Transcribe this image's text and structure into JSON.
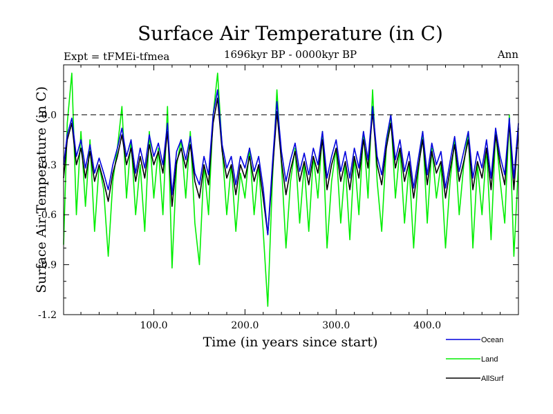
{
  "chart_data": {
    "type": "line",
    "title": "Surface Air Temperature (in C)",
    "subtitle_left": "Expt = tFMEi-tfmea",
    "subtitle_center": "1696kyr BP - 0000kyr BP",
    "subtitle_right": "Ann",
    "xlabel": "Time (in years since start)",
    "ylabel": "Surface Air Temperature (in C)",
    "xlim": [
      1,
      500
    ],
    "ylim": [
      -1.2,
      0.3
    ],
    "x_ticks": [
      100,
      200,
      300,
      400
    ],
    "x_tick_labels": [
      "100.0",
      "200.0",
      "300.0",
      "400.0"
    ],
    "y_ticks": [
      0.0,
      -0.3,
      -0.6,
      -0.9,
      -1.2
    ],
    "y_tick_labels": [
      "0.0",
      "-0.3",
      "-0.6",
      "-0.9",
      "-1.2"
    ],
    "reference_line": 0.0,
    "legend_position": "bottom-right",
    "series": [
      {
        "name": "Land",
        "color": "#00ee00",
        "x": [
          1,
          5,
          10,
          15,
          20,
          25,
          30,
          35,
          40,
          45,
          50,
          55,
          60,
          65,
          70,
          75,
          80,
          85,
          90,
          95,
          100,
          105,
          110,
          115,
          120,
          125,
          130,
          135,
          140,
          145,
          150,
          155,
          160,
          165,
          170,
          175,
          180,
          185,
          190,
          195,
          200,
          205,
          210,
          215,
          220,
          225,
          230,
          235,
          240,
          245,
          250,
          255,
          260,
          265,
          270,
          275,
          280,
          285,
          290,
          295,
          300,
          305,
          310,
          315,
          320,
          325,
          330,
          335,
          340,
          345,
          350,
          355,
          360,
          365,
          370,
          375,
          380,
          385,
          390,
          395,
          400,
          405,
          410,
          415,
          420,
          425,
          430,
          435,
          440,
          445,
          450,
          455,
          460,
          465,
          470,
          475,
          480,
          485,
          490,
          495,
          500
        ],
        "values": [
          -0.78,
          -0.05,
          0.25,
          -0.6,
          -0.1,
          -0.55,
          -0.15,
          -0.7,
          -0.3,
          -0.45,
          -0.85,
          -0.4,
          -0.2,
          0.05,
          -0.5,
          -0.15,
          -0.6,
          -0.3,
          -0.7,
          -0.1,
          -0.5,
          -0.2,
          -0.6,
          0.05,
          -0.92,
          -0.3,
          -0.15,
          -0.5,
          -0.1,
          -0.65,
          -0.9,
          -0.3,
          -0.6,
          0.0,
          0.25,
          -0.2,
          -0.6,
          -0.3,
          -0.7,
          -0.35,
          -0.5,
          -0.2,
          -0.6,
          -0.3,
          -0.7,
          -1.15,
          -0.4,
          0.15,
          -0.3,
          -0.8,
          -0.4,
          -0.2,
          -0.65,
          -0.3,
          -0.7,
          -0.25,
          -0.5,
          -0.1,
          -0.8,
          -0.4,
          -0.2,
          -0.65,
          -0.3,
          -0.75,
          -0.25,
          -0.6,
          -0.1,
          -0.5,
          0.15,
          -0.4,
          -0.7,
          -0.2,
          0.0,
          -0.5,
          -0.2,
          -0.65,
          -0.3,
          -0.8,
          -0.35,
          -0.1,
          -0.65,
          -0.2,
          -0.5,
          -0.3,
          -0.8,
          -0.4,
          -0.15,
          -0.6,
          -0.3,
          -0.1,
          -0.8,
          -0.3,
          -0.6,
          -0.2,
          -0.75,
          -0.1,
          -0.4,
          -0.65,
          0.0,
          -0.85,
          -0.3
        ]
      },
      {
        "name": "AllSurf",
        "color": "#000000",
        "x": [
          1,
          5,
          10,
          15,
          20,
          25,
          30,
          35,
          40,
          45,
          50,
          55,
          60,
          65,
          70,
          75,
          80,
          85,
          90,
          95,
          100,
          105,
          110,
          115,
          120,
          125,
          130,
          135,
          140,
          145,
          150,
          155,
          160,
          165,
          170,
          175,
          180,
          185,
          190,
          195,
          200,
          205,
          210,
          215,
          220,
          225,
          230,
          235,
          240,
          245,
          250,
          255,
          260,
          265,
          270,
          275,
          280,
          285,
          290,
          295,
          300,
          305,
          310,
          315,
          320,
          325,
          330,
          335,
          340,
          345,
          350,
          355,
          360,
          365,
          370,
          375,
          380,
          385,
          390,
          395,
          400,
          405,
          410,
          415,
          420,
          425,
          430,
          435,
          440,
          445,
          450,
          455,
          460,
          465,
          470,
          475,
          480,
          485,
          490,
          495,
          500
        ],
        "values": [
          -0.38,
          -0.15,
          -0.05,
          -0.3,
          -0.2,
          -0.38,
          -0.22,
          -0.4,
          -0.3,
          -0.4,
          -0.52,
          -0.35,
          -0.25,
          -0.12,
          -0.3,
          -0.2,
          -0.4,
          -0.25,
          -0.38,
          -0.18,
          -0.3,
          -0.22,
          -0.35,
          -0.1,
          -0.55,
          -0.28,
          -0.2,
          -0.32,
          -0.18,
          -0.4,
          -0.5,
          -0.3,
          -0.42,
          -0.05,
          0.1,
          -0.22,
          -0.38,
          -0.3,
          -0.48,
          -0.3,
          -0.38,
          -0.25,
          -0.4,
          -0.3,
          -0.5,
          -0.72,
          -0.35,
          0.02,
          -0.28,
          -0.48,
          -0.33,
          -0.22,
          -0.4,
          -0.28,
          -0.42,
          -0.25,
          -0.35,
          -0.15,
          -0.45,
          -0.3,
          -0.2,
          -0.4,
          -0.28,
          -0.45,
          -0.25,
          -0.38,
          -0.15,
          -0.32,
          0.02,
          -0.3,
          -0.42,
          -0.2,
          -0.05,
          -0.32,
          -0.2,
          -0.4,
          -0.28,
          -0.5,
          -0.32,
          -0.15,
          -0.42,
          -0.22,
          -0.35,
          -0.28,
          -0.5,
          -0.33,
          -0.18,
          -0.4,
          -0.28,
          -0.15,
          -0.45,
          -0.28,
          -0.38,
          -0.2,
          -0.45,
          -0.12,
          -0.3,
          -0.42,
          -0.05,
          -0.45,
          -0.08
        ]
      },
      {
        "name": "Ocean",
        "color": "#0000dd",
        "x": [
          1,
          5,
          10,
          15,
          20,
          25,
          30,
          35,
          40,
          45,
          50,
          55,
          60,
          65,
          70,
          75,
          80,
          85,
          90,
          95,
          100,
          105,
          110,
          115,
          120,
          125,
          130,
          135,
          140,
          145,
          150,
          155,
          160,
          165,
          170,
          175,
          180,
          185,
          190,
          195,
          200,
          205,
          210,
          215,
          220,
          225,
          230,
          235,
          240,
          245,
          250,
          255,
          260,
          265,
          270,
          275,
          280,
          285,
          290,
          295,
          300,
          305,
          310,
          315,
          320,
          325,
          330,
          335,
          340,
          345,
          350,
          355,
          360,
          365,
          370,
          375,
          380,
          385,
          390,
          395,
          400,
          405,
          410,
          415,
          420,
          425,
          430,
          435,
          440,
          445,
          450,
          455,
          460,
          465,
          470,
          475,
          480,
          485,
          490,
          495,
          500
        ],
        "values": [
          -0.3,
          -0.12,
          -0.02,
          -0.25,
          -0.15,
          -0.32,
          -0.18,
          -0.35,
          -0.26,
          -0.35,
          -0.45,
          -0.3,
          -0.2,
          -0.08,
          -0.25,
          -0.15,
          -0.35,
          -0.2,
          -0.32,
          -0.12,
          -0.25,
          -0.17,
          -0.3,
          -0.05,
          -0.48,
          -0.22,
          -0.15,
          -0.27,
          -0.13,
          -0.35,
          -0.42,
          -0.25,
          -0.36,
          0.0,
          0.15,
          -0.18,
          -0.32,
          -0.25,
          -0.42,
          -0.25,
          -0.32,
          -0.2,
          -0.34,
          -0.25,
          -0.44,
          -0.72,
          -0.3,
          0.08,
          -0.22,
          -0.4,
          -0.27,
          -0.17,
          -0.34,
          -0.23,
          -0.36,
          -0.2,
          -0.3,
          -0.1,
          -0.38,
          -0.25,
          -0.15,
          -0.34,
          -0.22,
          -0.38,
          -0.2,
          -0.32,
          -0.1,
          -0.27,
          0.05,
          -0.25,
          -0.36,
          -0.15,
          0.0,
          -0.27,
          -0.15,
          -0.34,
          -0.22,
          -0.44,
          -0.27,
          -0.1,
          -0.36,
          -0.17,
          -0.3,
          -0.22,
          -0.44,
          -0.28,
          -0.13,
          -0.34,
          -0.22,
          -0.1,
          -0.38,
          -0.22,
          -0.32,
          -0.15,
          -0.38,
          -0.08,
          -0.25,
          -0.36,
          -0.02,
          -0.38,
          -0.05
        ]
      }
    ],
    "legend_order": [
      "Ocean",
      "Land",
      "AllSurf"
    ]
  }
}
